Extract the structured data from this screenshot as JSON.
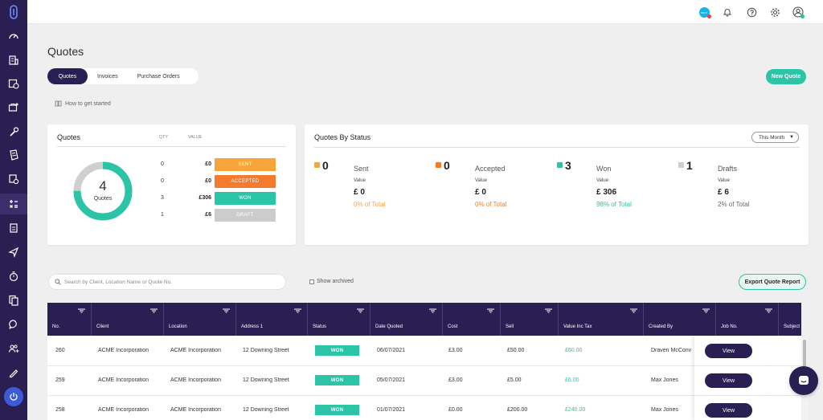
{
  "page": {
    "title": "Quotes",
    "tabs": [
      "Quotes",
      "Invoices",
      "Purchase Orders"
    ],
    "how_to": "How to get started",
    "new_quote": "New Quote"
  },
  "topbar": {
    "xero_label": "xero",
    "icons": [
      "xero-icon",
      "bell-icon",
      "help-icon",
      "gear-icon",
      "user-icon"
    ]
  },
  "sidebar": {
    "icons": [
      "logo-icon",
      "dashboard-icon",
      "building-icon",
      "calendar-clock-icon",
      "briefcase-plus-icon",
      "wrench-icon",
      "receipt-icon",
      "tasks-icon",
      "calculator-icon",
      "clipboard-icon",
      "send-icon",
      "stopwatch-icon",
      "documents-icon",
      "chat-icon",
      "users-icon",
      "pen-icon",
      "power-icon"
    ]
  },
  "quotes_card": {
    "title": "Quotes",
    "qty_header": "QTY",
    "value_header": "VALUE",
    "total": "4",
    "total_label": "Quotes",
    "rows": [
      {
        "qty": "0",
        "value": "£0",
        "status": "SENT",
        "color": "#f7a53b"
      },
      {
        "qty": "0",
        "value": "£0",
        "status": "ACCEPTED",
        "color": "#f47a2e"
      },
      {
        "qty": "3",
        "value": "£306",
        "status": "WON",
        "color": "#2bc4a6"
      },
      {
        "qty": "1",
        "value": "£6",
        "status": "DRAFT",
        "color": "#cccccc"
      }
    ],
    "donut": {
      "won_fraction": 0.75,
      "won_color": "#2bc4a6",
      "draft_color": "#cfcfcf"
    }
  },
  "status_card": {
    "title": "Quotes By Status",
    "period": "This Month",
    "stats": [
      {
        "count": "0",
        "name": "Sent",
        "value_label": "Value",
        "amount": "£ 0",
        "pct": "0% of Total",
        "color": "#f7a53b",
        "pct_color": "#f7a53b"
      },
      {
        "count": "0",
        "name": "Accepted",
        "value_label": "Value",
        "amount": "£ 0",
        "pct": "0% of Total",
        "color": "#f47a2e",
        "pct_color": "#f47a2e"
      },
      {
        "count": "3",
        "name": "Won",
        "value_label": "Value",
        "amount": "£ 306",
        "pct": "98% of Total",
        "color": "#2bc4a6",
        "pct_color": "#2bc4a6"
      },
      {
        "count": "1",
        "name": "Drafts",
        "value_label": "Value",
        "amount": "£ 6",
        "pct": "2% of Total",
        "color": "#cccccc",
        "pct_color": "#666666"
      }
    ]
  },
  "search": {
    "placeholder": "Search by Client, Location Name or Quote No.",
    "show_archived": "Show archived",
    "export": "Export Quote Report"
  },
  "table": {
    "columns": [
      "No.",
      "Client",
      "Location",
      "Address 1",
      "Status",
      "Date Quoted",
      "Cost",
      "Sell",
      "Value Inc Tax",
      "Created By",
      "Job No.",
      "Subject"
    ],
    "rows": [
      {
        "no": "260",
        "client": "ACME Incorporation",
        "location": "ACME Incorporation",
        "address": "12 Downing Street",
        "status": "WON",
        "date": "06/07/2021",
        "cost": "£3.00",
        "sell": "£50.00",
        "value": "£60.00",
        "created_by": "Draven McConv",
        "action": "View"
      },
      {
        "no": "259",
        "client": "ACME Incorporation",
        "location": "ACME Incorporation",
        "address": "12 Downing Street",
        "status": "WON",
        "date": "05/07/2021",
        "cost": "£3.00",
        "sell": "£5.00",
        "value": "£6.00",
        "created_by": "Max Jones",
        "action": "View"
      },
      {
        "no": "258",
        "client": "ACME Incorporation",
        "location": "ACME Incorporation",
        "address": "12 Downing Street",
        "status": "WON",
        "date": "01/07/2021",
        "cost": "£0.00",
        "sell": "£200.00",
        "value": "£240.00",
        "created_by": "Max Jones",
        "action": "View"
      }
    ]
  },
  "colors": {
    "brand": "#2a1f52",
    "accent": "#2bc4a6"
  }
}
